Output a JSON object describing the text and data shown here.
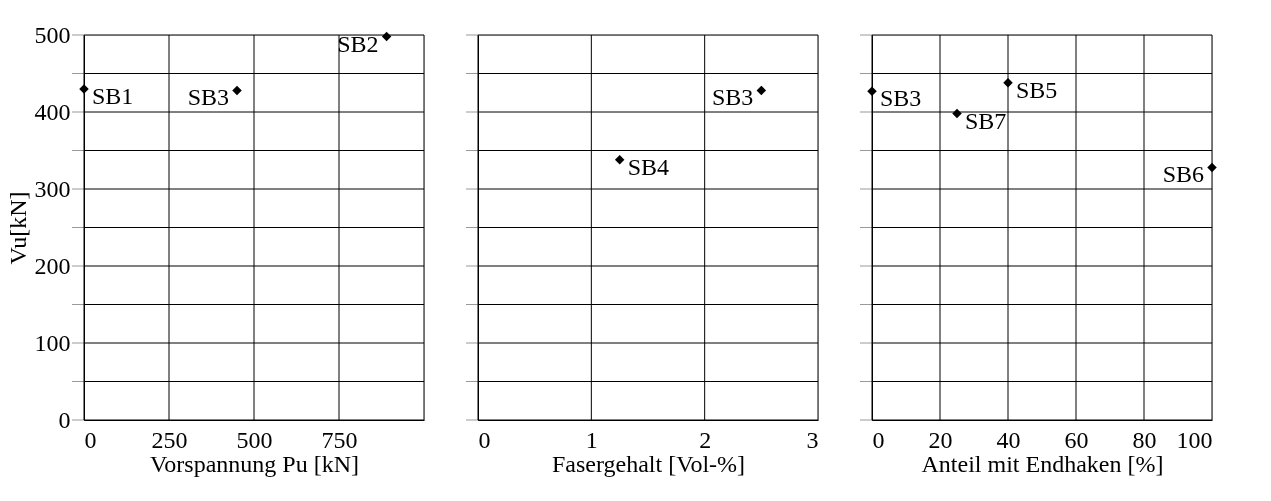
{
  "chart_data": [
    {
      "type": "scatter",
      "xlabel": "Vorspannung Pu [kN]",
      "ylabel": "Vu[kN]",
      "x": [
        0,
        450,
        890
      ],
      "series": [
        {
          "color": "#000000",
          "values": [
            430,
            428,
            498
          ]
        }
      ],
      "xlim": [
        0,
        1000
      ],
      "xticks": [
        0,
        250,
        500,
        750,
        {
          "value": 1000,
          "label": null
        }
      ],
      "ylim": [
        0,
        500
      ],
      "yticks": [
        0,
        {
          "value": 50,
          "label": null
        },
        100,
        {
          "value": 150,
          "label": null
        },
        200,
        {
          "value": 250,
          "label": null
        },
        300,
        {
          "value": 350,
          "label": null
        },
        400,
        {
          "value": 450,
          "label": null
        },
        500
      ],
      "grid": true,
      "marker": "diamond",
      "annotations": [
        {
          "text": "SB1",
          "x": 0,
          "y": 430
        },
        {
          "text": "SB3",
          "x": 450,
          "y": 428
        },
        {
          "text": "SB2",
          "x": 890,
          "y": 498
        }
      ]
    },
    {
      "type": "scatter",
      "xlabel": "Fasergehalt [Vol-%]",
      "x": [
        1.25,
        2.5
      ],
      "series": [
        {
          "color": "#000000",
          "values": [
            338,
            428
          ]
        }
      ],
      "xlim": [
        0,
        3
      ],
      "xticks": [
        0,
        1,
        2,
        3
      ],
      "ylim": [
        0,
        500
      ],
      "yticks": [
        0,
        {
          "value": 50,
          "label": null
        },
        100,
        {
          "value": 150,
          "label": null
        },
        200,
        {
          "value": 250,
          "label": null
        },
        300,
        {
          "value": 350,
          "label": null
        },
        400,
        {
          "value": 450,
          "label": null
        },
        500
      ],
      "grid": true,
      "marker": "diamond",
      "tick_labels": "x",
      "annotations": [
        {
          "text": "SB4",
          "x": 1.25,
          "y": 338
        },
        {
          "text": "SB3",
          "x": 2.5,
          "y": 428
        }
      ]
    },
    {
      "type": "scatter",
      "xlabel": "Anteil mit Endhaken [%]",
      "x": [
        0,
        25,
        40,
        100
      ],
      "series": [
        {
          "color": "#000000",
          "values": [
            427,
            398,
            438,
            328
          ]
        }
      ],
      "xlim": [
        0,
        100
      ],
      "xticks": [
        0,
        20,
        40,
        60,
        80,
        100
      ],
      "ylim": [
        0,
        500
      ],
      "yticks": [
        0,
        {
          "value": 50,
          "label": null
        },
        100,
        {
          "value": 150,
          "label": null
        },
        200,
        {
          "value": 250,
          "label": null
        },
        300,
        {
          "value": 350,
          "label": null
        },
        400,
        {
          "value": 450,
          "label": null
        },
        500
      ],
      "grid": true,
      "marker": "diamond",
      "tick_labels": "x",
      "annotations": [
        {
          "text": "SB3",
          "x": 0,
          "y": 427
        },
        {
          "text": "SB7",
          "x": 25,
          "y": 398
        },
        {
          "text": "SB5",
          "x": 40,
          "y": 438
        },
        {
          "text": "SB6",
          "x": 100,
          "y": 328
        }
      ]
    }
  ]
}
